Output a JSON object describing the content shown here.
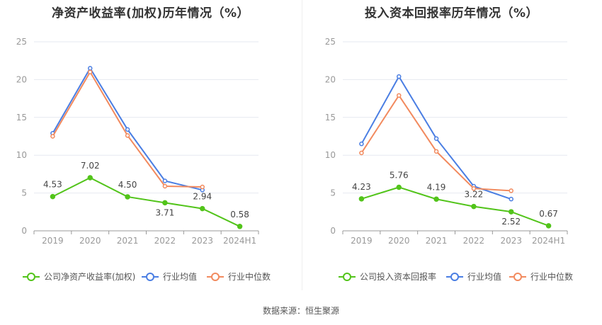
{
  "chart_data": [
    {
      "type": "line",
      "title": "净资产收益率(加权)历年情况（%）",
      "categories": [
        "2019",
        "2020",
        "2021",
        "2022",
        "2023",
        "2024H1"
      ],
      "ylim": [
        0,
        25
      ],
      "yticks": [
        0,
        5,
        10,
        15,
        20,
        25
      ],
      "grid": true,
      "legend_position": "bottom",
      "series": [
        {
          "name": "公司净资产收益率(加权)",
          "color": "#52c41a",
          "values": [
            4.53,
            7.02,
            4.5,
            3.71,
            2.94,
            0.58
          ],
          "labels": [
            "4.53",
            "7.02",
            "4.50",
            "3.71",
            "2.94",
            "0.58"
          ]
        },
        {
          "name": "行业均值",
          "color": "#4a7ee3",
          "values": [
            12.9,
            21.5,
            13.4,
            6.6,
            5.4,
            null
          ]
        },
        {
          "name": "行业中位数",
          "color": "#f28a5e",
          "values": [
            12.5,
            21.0,
            12.6,
            5.9,
            5.8,
            null
          ]
        }
      ]
    },
    {
      "type": "line",
      "title": "投入资本回报率历年情况（%）",
      "categories": [
        "2019",
        "2020",
        "2021",
        "2022",
        "2023",
        "2024H1"
      ],
      "ylim": [
        0,
        25
      ],
      "yticks": [
        0,
        5,
        10,
        15,
        20,
        25
      ],
      "grid": true,
      "legend_position": "bottom",
      "series": [
        {
          "name": "公司投入资本回报率",
          "color": "#52c41a",
          "values": [
            4.23,
            5.76,
            4.19,
            3.22,
            2.52,
            0.67
          ],
          "labels": [
            "4.23",
            "5.76",
            "4.19",
            "3.22",
            "2.52",
            "0.67"
          ]
        },
        {
          "name": "行业均值",
          "color": "#4a7ee3",
          "values": [
            11.5,
            20.4,
            12.2,
            5.9,
            4.2,
            null
          ]
        },
        {
          "name": "行业中位数",
          "color": "#f28a5e",
          "values": [
            10.3,
            17.9,
            10.5,
            5.6,
            5.3,
            null
          ]
        }
      ]
    }
  ],
  "footer": {
    "source": "数据来源：恒生聚源"
  }
}
